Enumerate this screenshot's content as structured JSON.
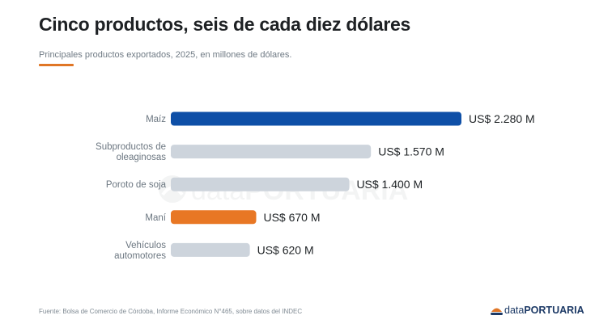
{
  "header": {
    "title": "Cinco productos, seis de cada diez dólares",
    "subtitle": "Principales productos exportados, 2025, en millones de dólares."
  },
  "colors": {
    "accent": "#e07626",
    "highlight_blue": "#0e4fa7",
    "highlight_orange": "#e87724",
    "default_bar": "#cdd4dc",
    "label_text": "#6b7680",
    "value_text": "#1f2326"
  },
  "chart_data": {
    "type": "bar",
    "orientation": "horizontal",
    "categories": [
      [
        "Maíz"
      ],
      [
        "Subproductos de",
        "oleaginosas"
      ],
      [
        "Poroto de soja"
      ],
      [
        "Maní"
      ],
      [
        "Vehículos",
        "automotores"
      ]
    ],
    "values": [
      2280,
      1570,
      1400,
      670,
      620
    ],
    "value_labels": [
      "US$ 2.280 M",
      "US$ 1.570 M",
      "US$ 1.400 M",
      "US$ 670 M",
      "US$ 620 M"
    ],
    "highlight": [
      "blue",
      "none",
      "none",
      "orange",
      "none"
    ],
    "xlim": [
      0,
      2280
    ],
    "units": "millones de dólares",
    "grid": false,
    "axes_visible": false
  },
  "watermark": {
    "text_light": "data",
    "text_bold": "PORTUARIA"
  },
  "footer": {
    "source": "Fuente: Bolsa de Comercio de Córdoba, Informe Económico N°465, sobre datos del INDEC",
    "brand_light": "data",
    "brand_bold": "PORTUARIA"
  }
}
